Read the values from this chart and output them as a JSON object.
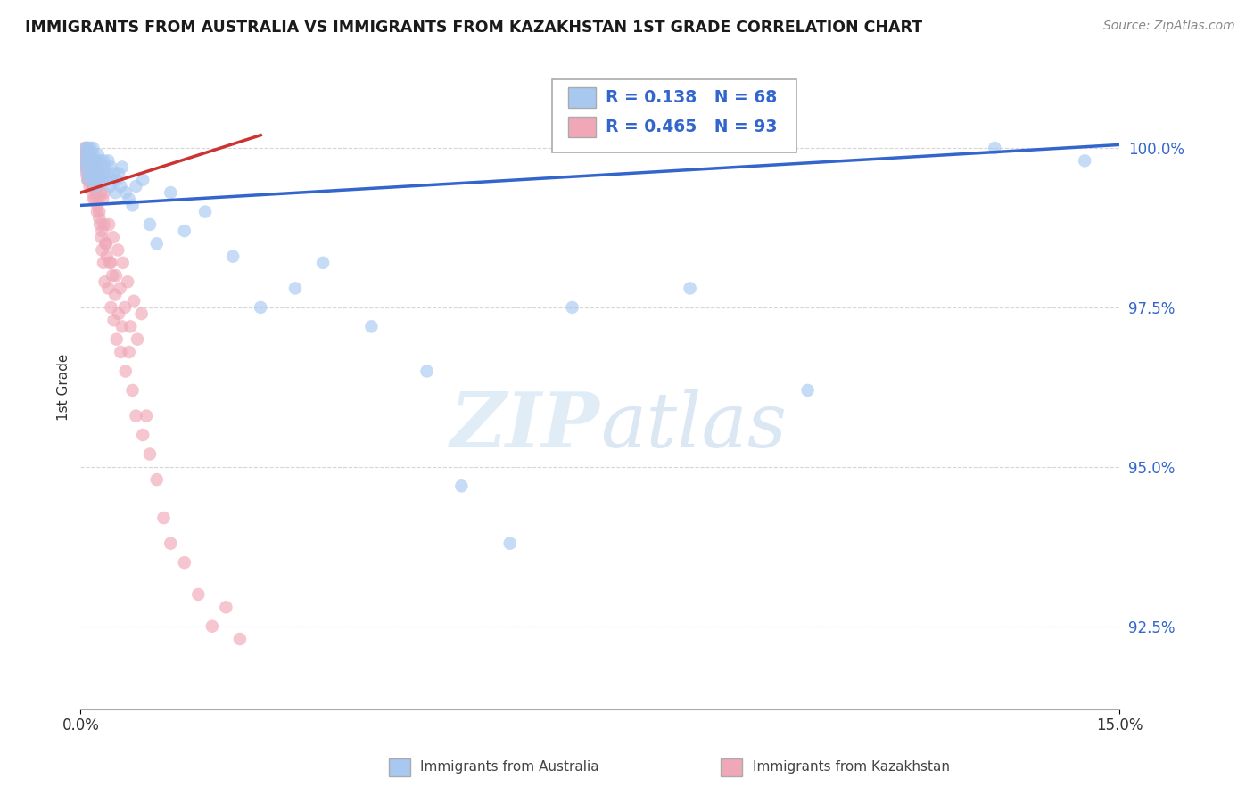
{
  "title": "IMMIGRANTS FROM AUSTRALIA VS IMMIGRANTS FROM KAZAKHSTAN 1ST GRADE CORRELATION CHART",
  "source": "Source: ZipAtlas.com",
  "ylabel": "1st Grade",
  "yticks": [
    100.0,
    97.5,
    95.0,
    92.5
  ],
  "ytick_labels": [
    "100.0%",
    "97.5%",
    "95.0%",
    "92.5%"
  ],
  "xlim": [
    0.0,
    15.0
  ],
  "ylim": [
    91.2,
    101.3
  ],
  "legend_r_australia": "R = 0.138",
  "legend_n_australia": "N = 68",
  "legend_r_kazakhstan": "R = 0.465",
  "legend_n_kazakhstan": "N = 93",
  "australia_color": "#a8c8f0",
  "kazakhstan_color": "#f0a8b8",
  "trend_australia_color": "#3366cc",
  "trend_kazakhstan_color": "#cc3333",
  "background_color": "#ffffff",
  "trend_aus_x0": 0.0,
  "trend_aus_y0": 99.1,
  "trend_aus_x1": 15.0,
  "trend_aus_y1": 100.05,
  "trend_kaz_x0": 0.0,
  "trend_kaz_y0": 99.3,
  "trend_kaz_x1": 2.6,
  "trend_kaz_y1": 100.2,
  "australia_scatter_x": [
    0.05,
    0.07,
    0.08,
    0.09,
    0.1,
    0.1,
    0.11,
    0.12,
    0.13,
    0.14,
    0.15,
    0.15,
    0.16,
    0.17,
    0.18,
    0.18,
    0.19,
    0.2,
    0.2,
    0.21,
    0.22,
    0.23,
    0.24,
    0.25,
    0.26,
    0.27,
    0.28,
    0.29,
    0.3,
    0.31,
    0.32,
    0.33,
    0.35,
    0.36,
    0.38,
    0.4,
    0.42,
    0.44,
    0.46,
    0.48,
    0.5,
    0.52,
    0.55,
    0.58,
    0.6,
    0.65,
    0.7,
    0.75,
    0.8,
    0.9,
    1.0,
    1.1,
    1.3,
    1.5,
    1.8,
    2.2,
    2.6,
    3.1,
    3.5,
    4.2,
    5.0,
    5.5,
    6.2,
    7.1,
    8.8,
    10.5,
    13.2,
    14.5
  ],
  "australia_scatter_y": [
    99.8,
    99.7,
    100.0,
    99.9,
    99.6,
    100.0,
    99.5,
    99.8,
    99.9,
    100.0,
    99.7,
    99.6,
    99.8,
    99.5,
    100.0,
    99.9,
    99.7,
    99.6,
    99.8,
    99.4,
    99.7,
    99.8,
    99.6,
    99.9,
    99.5,
    99.7,
    99.8,
    99.6,
    99.7,
    99.5,
    99.6,
    99.8,
    99.7,
    99.6,
    99.5,
    99.8,
    99.4,
    99.7,
    99.5,
    99.6,
    99.3,
    99.5,
    99.6,
    99.4,
    99.7,
    99.3,
    99.2,
    99.1,
    99.4,
    99.5,
    98.8,
    98.5,
    99.3,
    98.7,
    99.0,
    98.3,
    97.5,
    97.8,
    98.2,
    97.2,
    96.5,
    94.7,
    93.8,
    97.5,
    97.8,
    96.2,
    100.0,
    99.8
  ],
  "kazakhstan_scatter_x": [
    0.04,
    0.05,
    0.06,
    0.07,
    0.08,
    0.08,
    0.09,
    0.1,
    0.1,
    0.11,
    0.12,
    0.12,
    0.13,
    0.14,
    0.15,
    0.15,
    0.16,
    0.17,
    0.18,
    0.18,
    0.19,
    0.2,
    0.2,
    0.21,
    0.22,
    0.22,
    0.23,
    0.24,
    0.25,
    0.25,
    0.26,
    0.27,
    0.28,
    0.29,
    0.3,
    0.3,
    0.31,
    0.32,
    0.33,
    0.34,
    0.35,
    0.36,
    0.38,
    0.4,
    0.42,
    0.44,
    0.46,
    0.48,
    0.5,
    0.52,
    0.55,
    0.58,
    0.6,
    0.65,
    0.7,
    0.75,
    0.8,
    0.9,
    0.95,
    1.0,
    1.1,
    1.2,
    1.3,
    1.5,
    1.7,
    1.9,
    2.1,
    2.3,
    0.07,
    0.09,
    0.11,
    0.13,
    0.16,
    0.19,
    0.21,
    0.24,
    0.27,
    0.31,
    0.34,
    0.37,
    0.41,
    0.44,
    0.47,
    0.51,
    0.54,
    0.57,
    0.61,
    0.64,
    0.68,
    0.72,
    0.77,
    0.82,
    0.88
  ],
  "kazakhstan_scatter_y": [
    99.8,
    99.9,
    100.0,
    99.7,
    99.8,
    99.6,
    100.0,
    99.5,
    99.9,
    99.7,
    99.8,
    99.6,
    99.4,
    99.7,
    99.5,
    99.8,
    99.6,
    99.3,
    99.7,
    99.5,
    99.4,
    99.6,
    99.8,
    99.2,
    99.5,
    99.7,
    99.3,
    99.1,
    99.4,
    99.6,
    99.2,
    99.0,
    98.8,
    99.3,
    98.6,
    99.5,
    98.4,
    99.2,
    98.2,
    98.8,
    97.9,
    98.5,
    98.3,
    97.8,
    98.2,
    97.5,
    98.0,
    97.3,
    97.7,
    97.0,
    97.4,
    96.8,
    97.2,
    96.5,
    96.8,
    96.2,
    95.8,
    95.5,
    95.8,
    95.2,
    94.8,
    94.2,
    93.8,
    93.5,
    93.0,
    92.5,
    92.8,
    92.3,
    99.9,
    99.7,
    99.5,
    99.6,
    99.4,
    99.2,
    99.6,
    99.0,
    98.9,
    98.7,
    99.3,
    98.5,
    98.8,
    98.2,
    98.6,
    98.0,
    98.4,
    97.8,
    98.2,
    97.5,
    97.9,
    97.2,
    97.6,
    97.0,
    97.4
  ]
}
